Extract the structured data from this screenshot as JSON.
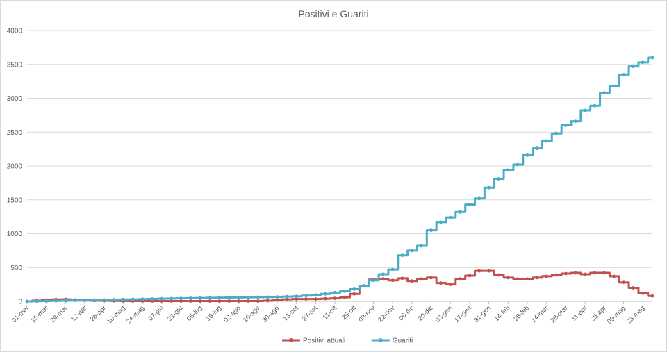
{
  "chart_data": {
    "type": "line",
    "title": "Positivi e Guariti",
    "xlabel": "",
    "ylabel": "",
    "ylim": [
      0,
      4000
    ],
    "yticks": [
      0,
      500,
      1000,
      1500,
      2000,
      2500,
      3000,
      3500,
      4000
    ],
    "grid": true,
    "legend_position": "bottom",
    "x_tick_labels": [
      "01-mar",
      "15-mar",
      "29-mar",
      "12-apr",
      "26-apr",
      "10-mag",
      "24-mag",
      "07-giu",
      "21-giu",
      "05-lug",
      "19-lug",
      "02-ago",
      "16-ago",
      "30-ago",
      "13-set",
      "27-set",
      "11-ott",
      "25-ott",
      "08-nov",
      "22-nov",
      "06-dic",
      "20-dic",
      "03-gen",
      "17-gen",
      "31-gen",
      "14-feb",
      "28-feb",
      "14-mar",
      "28-mar",
      "11-apr",
      "25-apr",
      "09-mag",
      "23-mag"
    ],
    "x": [
      "01-mar",
      "08-mar",
      "15-mar",
      "22-mar",
      "29-mar",
      "05-apr",
      "12-apr",
      "19-apr",
      "26-apr",
      "03-mag",
      "10-mag",
      "17-mag",
      "24-mag",
      "31-mag",
      "07-giu",
      "14-giu",
      "21-giu",
      "28-giu",
      "05-lug",
      "12-lug",
      "19-lug",
      "26-lug",
      "02-ago",
      "09-ago",
      "16-ago",
      "23-ago",
      "30-ago",
      "06-set",
      "13-set",
      "20-set",
      "27-set",
      "04-ott",
      "11-ott",
      "18-ott",
      "25-ott",
      "01-nov",
      "08-nov",
      "15-nov",
      "22-nov",
      "29-nov",
      "06-dic",
      "13-dic",
      "20-dic",
      "27-dic",
      "03-gen",
      "10-gen",
      "17-gen",
      "24-gen",
      "31-gen",
      "07-feb",
      "14-feb",
      "21-feb",
      "28-feb",
      "07-mar",
      "14-mar",
      "21-mar",
      "28-mar",
      "04-apr",
      "11-apr",
      "18-apr",
      "25-apr",
      "02-mag",
      "09-mag",
      "16-mag",
      "23-mag",
      "30-mag"
    ],
    "series": [
      {
        "name": "Positivi attuali",
        "color": "#c0504d",
        "values": [
          0,
          10,
          20,
          28,
          30,
          20,
          15,
          12,
          10,
          8,
          6,
          5,
          5,
          5,
          5,
          5,
          5,
          5,
          5,
          5,
          5,
          5,
          5,
          5,
          5,
          10,
          20,
          30,
          35,
          35,
          35,
          40,
          45,
          60,
          110,
          230,
          320,
          330,
          310,
          340,
          300,
          330,
          350,
          270,
          250,
          330,
          380,
          450,
          450,
          390,
          350,
          330,
          330,
          350,
          370,
          390,
          410,
          420,
          400,
          420,
          420,
          370,
          280,
          200,
          120,
          80
        ]
      },
      {
        "name": "Guariti",
        "color": "#4bacc6",
        "values": [
          0,
          3,
          5,
          8,
          10,
          15,
          18,
          20,
          22,
          25,
          28,
          30,
          33,
          36,
          40,
          42,
          45,
          47,
          50,
          52,
          54,
          56,
          58,
          60,
          62,
          64,
          66,
          70,
          75,
          85,
          95,
          110,
          130,
          150,
          180,
          230,
          310,
          400,
          470,
          680,
          750,
          820,
          1050,
          1170,
          1240,
          1320,
          1430,
          1520,
          1680,
          1810,
          1940,
          2020,
          2160,
          2260,
          2370,
          2480,
          2600,
          2660,
          2820,
          2890,
          3080,
          3180,
          3350,
          3470,
          3530,
          3600
        ]
      }
    ]
  }
}
